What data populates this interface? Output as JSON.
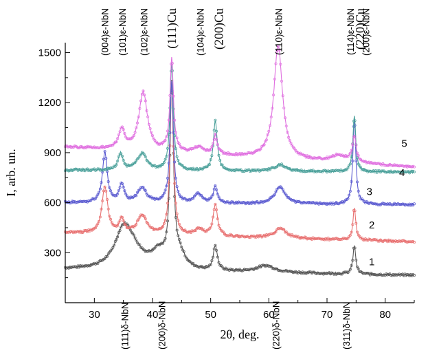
{
  "chart_data": {
    "type": "line",
    "title": "",
    "xlabel": "2θ, deg.",
    "ylabel": "I, arb. un.",
    "xlim": [
      25,
      85
    ],
    "ylim": [
      0,
      1560
    ],
    "x_ticks": [
      30,
      40,
      50,
      60,
      70,
      80
    ],
    "x_tick_labels": [
      "30",
      "40",
      "50",
      "60",
      "70",
      "80"
    ],
    "y_ticks": [
      300,
      600,
      900,
      1200,
      1500
    ],
    "y_tick_labels": [
      "300",
      "600",
      "900",
      "1200",
      "1500"
    ],
    "grid": false,
    "legend": "none",
    "series": [
      {
        "name": "1",
        "color": "#555555",
        "baseline": 200,
        "slope": -0.6,
        "peaks": [
          [
            35,
            210,
            1.8
          ],
          [
            36.5,
            90,
            2.2
          ],
          [
            41,
            90,
            1.5
          ],
          [
            43.3,
            1060,
            0.35
          ],
          [
            44.6,
            90,
            1.2
          ],
          [
            50.8,
            150,
            0.4
          ],
          [
            59.5,
            40,
            2.0
          ],
          [
            74.7,
            170,
            0.3
          ]
        ],
        "num_label": "1",
        "num_label_x": 77.2,
        "num_label_y": 225
      },
      {
        "name": "2",
        "color": "#e87070",
        "baseline": 420,
        "slope": -0.9,
        "peaks": [
          [
            31.8,
            280,
            0.6
          ],
          [
            34.7,
            85,
            0.5
          ],
          [
            38.2,
            110,
            1.0
          ],
          [
            43.3,
            920,
            0.35
          ],
          [
            48,
            40,
            0.8
          ],
          [
            50.8,
            190,
            0.45
          ],
          [
            62,
            60,
            1.2
          ],
          [
            74.7,
            190,
            0.3
          ]
        ],
        "num_label": "2",
        "num_label_x": 77.2,
        "num_label_y": 445
      },
      {
        "name": "3",
        "color": "#5a5ad0",
        "baseline": 600,
        "slope": -0.2,
        "peaks": [
          [
            31.8,
            300,
            0.5
          ],
          [
            34.7,
            110,
            0.5
          ],
          [
            38.2,
            90,
            0.9
          ],
          [
            43.3,
            720,
            0.35
          ],
          [
            47.9,
            55,
            0.8
          ],
          [
            50.8,
            100,
            0.4
          ],
          [
            61.9,
            100,
            1.1
          ],
          [
            74.7,
            520,
            0.3
          ]
        ],
        "num_label": "3",
        "num_label_x": 76.8,
        "num_label_y": 645
      },
      {
        "name": "4",
        "color": "#4aa09a",
        "baseline": 795,
        "slope": -0.2,
        "peaks": [
          [
            34.5,
            100,
            0.5
          ],
          [
            38.2,
            100,
            1.0
          ],
          [
            43.3,
            640,
            0.35
          ],
          [
            50.8,
            300,
            0.4
          ],
          [
            62,
            40,
            1.3
          ],
          [
            74.7,
            335,
            0.3
          ]
        ],
        "num_label": "4",
        "num_label_x": 82.4,
        "num_label_y": 760
      },
      {
        "name": "5",
        "color": "#e070e0",
        "baseline": 935,
        "slope": -2.0,
        "peaks": [
          [
            34.7,
            120,
            0.6
          ],
          [
            38.4,
            350,
            0.9
          ],
          [
            43.3,
            560,
            0.35
          ],
          [
            48,
            40,
            1.0
          ],
          [
            50.8,
            110,
            0.4
          ],
          [
            61.6,
            680,
            0.9
          ],
          [
            72,
            40,
            1.5
          ],
          [
            74.7,
            150,
            0.4
          ]
        ],
        "num_label": "5",
        "num_label_x": 82.8,
        "num_label_y": 935
      }
    ],
    "annotations_top": [
      {
        "text": "(004)ε-NbN",
        "x": 31.8,
        "size": "small"
      },
      {
        "text": "(101)ε-NbN",
        "x": 34.8,
        "size": "small"
      },
      {
        "text": "(102)ε-NbN",
        "x": 38.5,
        "size": "small"
      },
      {
        "text": "(111)Cu",
        "x": 43.4,
        "size": "large"
      },
      {
        "text": "(104)ε-NbN",
        "x": 48.2,
        "size": "small"
      },
      {
        "text": "(200)Cu",
        "x": 51.5,
        "size": "large"
      },
      {
        "text": "(110)ε-NbN",
        "x": 61.7,
        "size": "small"
      },
      {
        "text": "(114)ε-NbN",
        "x": 74.0,
        "size": "small"
      },
      {
        "text": "(220)Cu",
        "x": 75.8,
        "size": "large"
      },
      {
        "text": "(200)ε-NbN",
        "x": 76.7,
        "size": "small"
      }
    ],
    "annotations_bottom": [
      {
        "text": "(111)δ-NbN",
        "x": 35.2
      },
      {
        "text": "(200)δ-NbN",
        "x": 41.6
      },
      {
        "text": "(220)δ-NbN",
        "x": 61.2
      },
      {
        "text": "(311)δ-NbN",
        "x": 73.3
      }
    ]
  }
}
